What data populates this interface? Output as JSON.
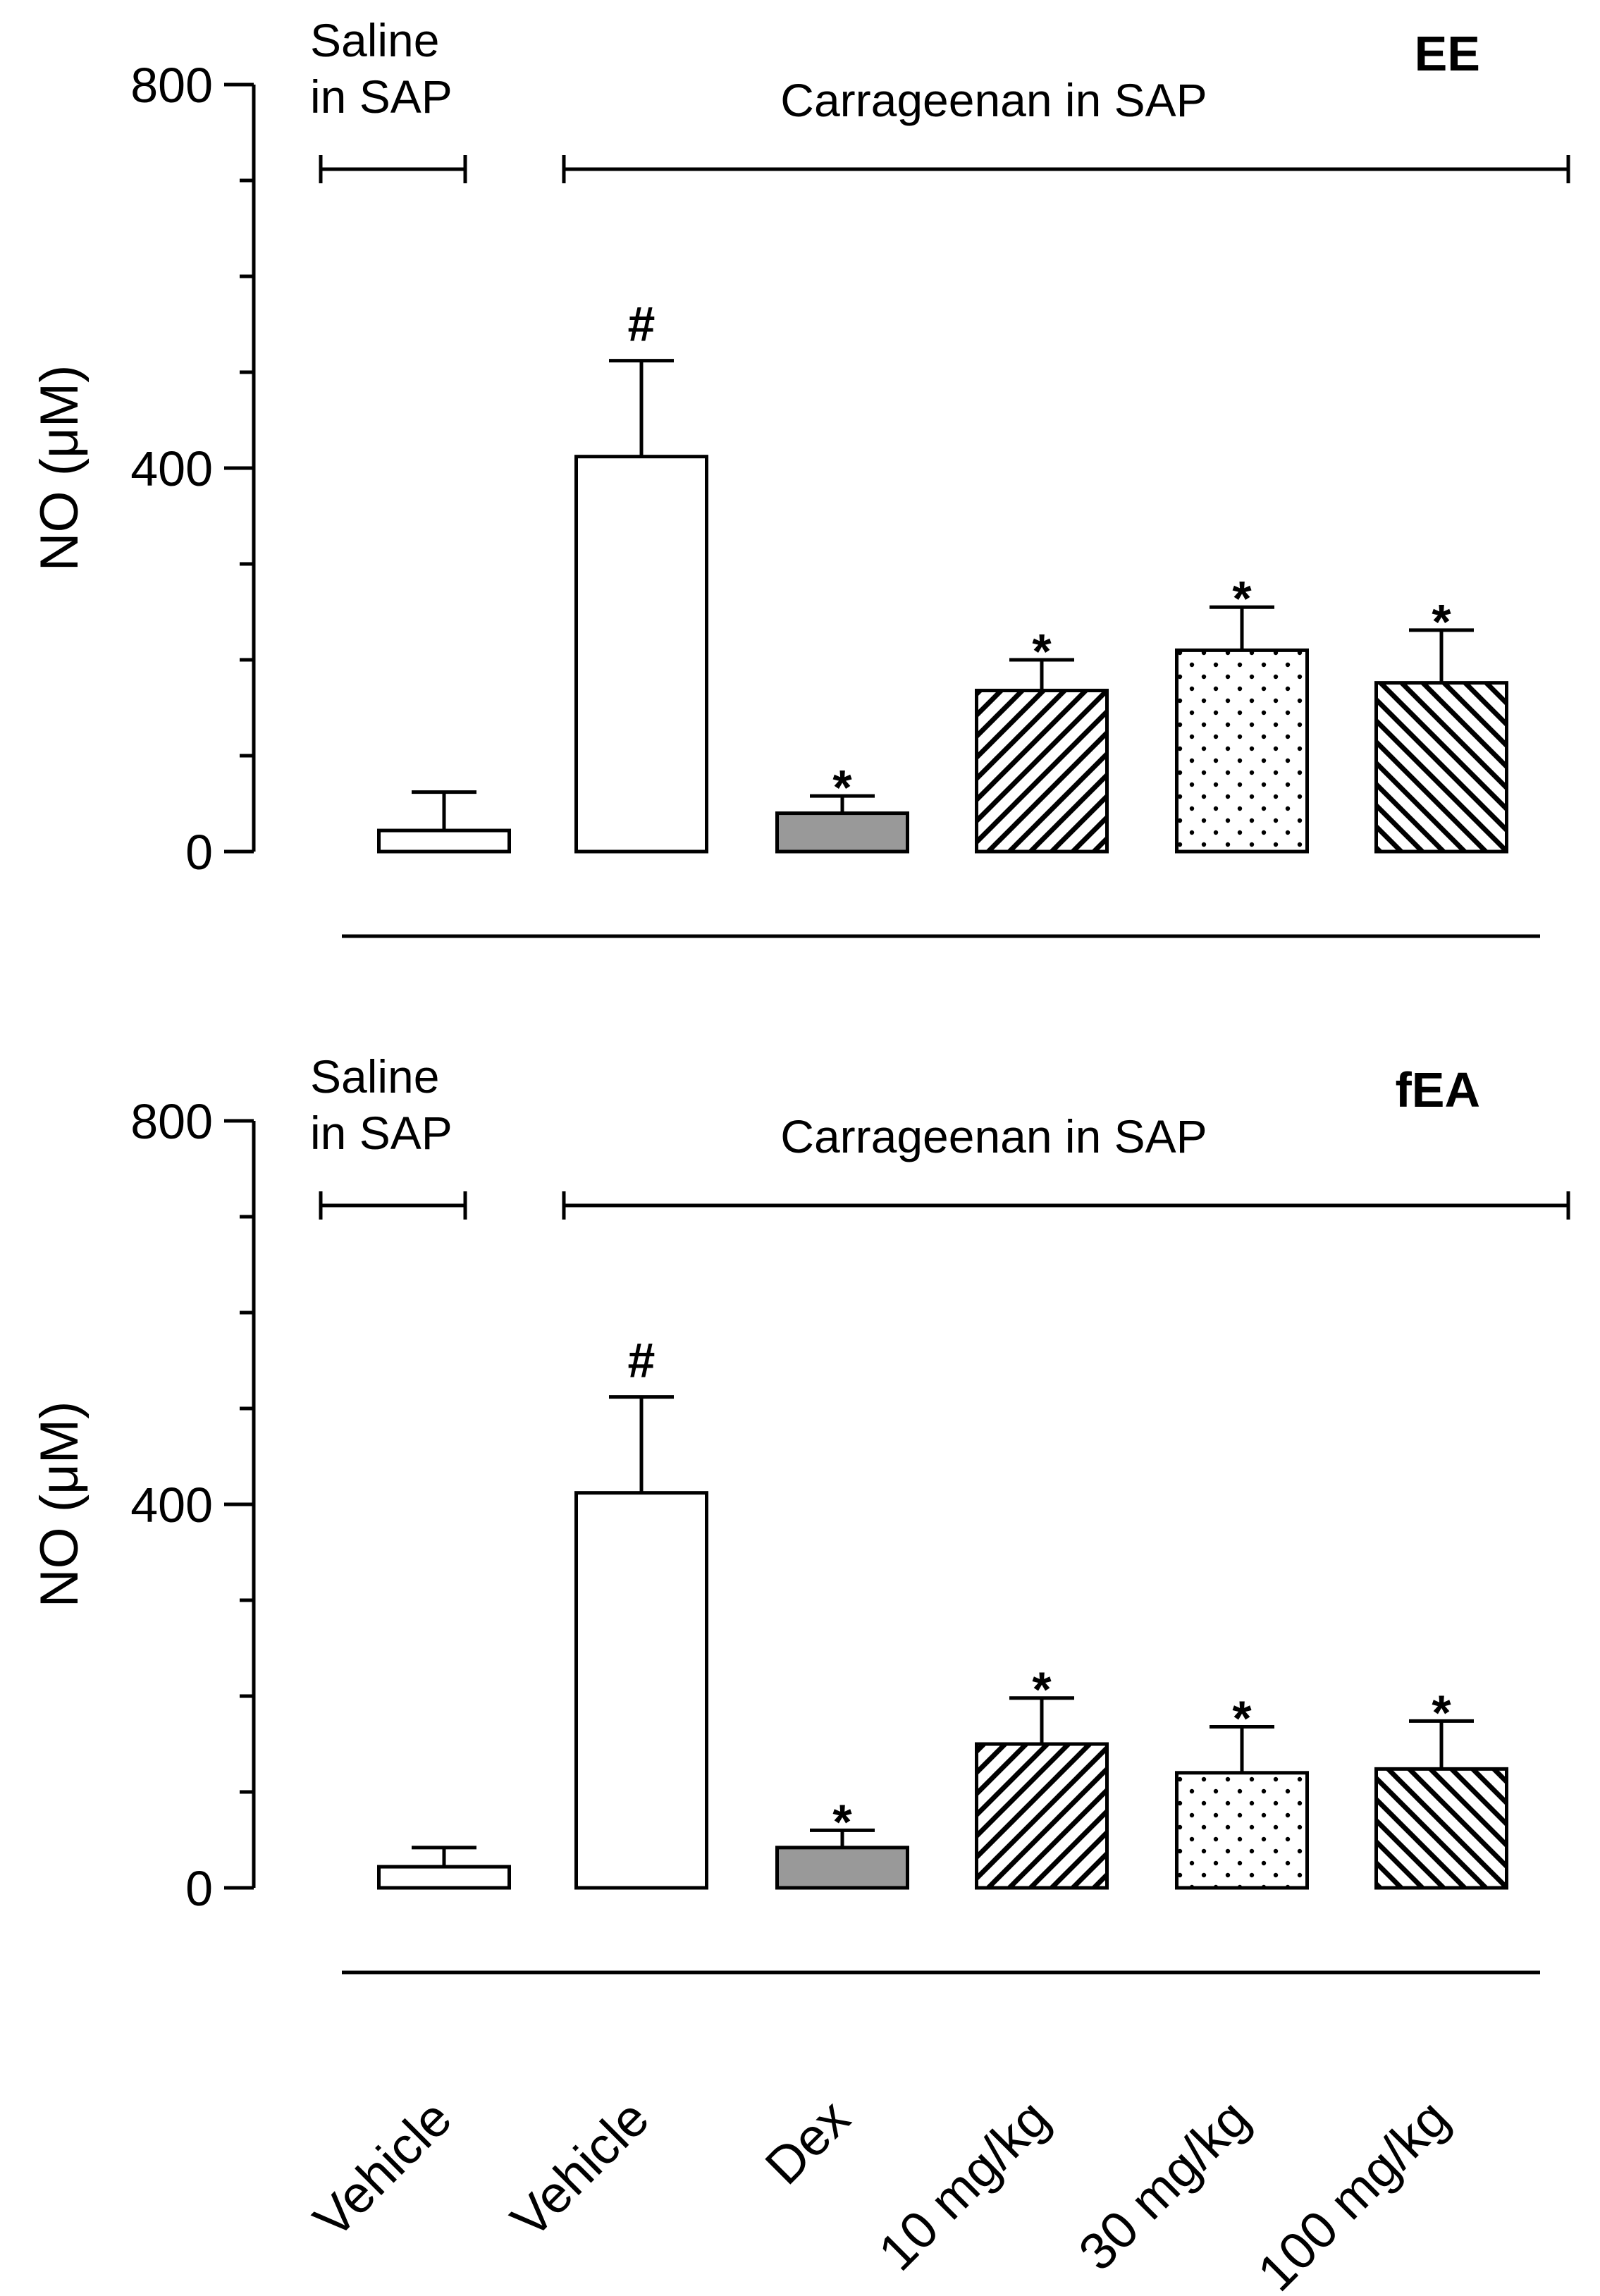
{
  "chart_data": [
    {
      "type": "bar",
      "title": "EE",
      "ylabel": "NO (μM)",
      "ylim": [
        0,
        800
      ],
      "yticks": [
        "0",
        "400",
        "800"
      ],
      "group_labels": {
        "saline": "Saline in SAP",
        "carrageenan": "Carrageenan in  SAP"
      },
      "categories": [
        "Vehicle",
        "Vehicle",
        "Dex",
        "10 mg/kg",
        "30 mg/kg",
        "100 mg/kg"
      ],
      "values": [
        22,
        412,
        40,
        168,
        210,
        176
      ],
      "errors": [
        40,
        100,
        18,
        32,
        45,
        55
      ],
      "significance": [
        "",
        "#",
        "*",
        "*",
        "*",
        "*"
      ],
      "fills": [
        "white",
        "white",
        "gray",
        "hatch-forward",
        "dots",
        "hatch-back"
      ]
    },
    {
      "type": "bar",
      "title": "fEA",
      "ylabel": "NO (μM)",
      "ylim": [
        0,
        800
      ],
      "yticks": [
        "0",
        "400",
        "800"
      ],
      "group_labels": {
        "saline": "Saline in SAP",
        "carrageenan": "Carrageenan in  SAP"
      },
      "categories": [
        "Vehicle",
        "Vehicle",
        "Dex",
        "10 mg/kg",
        "30 mg/kg",
        "100 mg/kg"
      ],
      "values": [
        22,
        412,
        42,
        150,
        120,
        124
      ],
      "errors": [
        20,
        100,
        18,
        48,
        48,
        50
      ],
      "significance": [
        "",
        "#",
        "*",
        "*",
        "*",
        "*"
      ],
      "fills": [
        "white",
        "white",
        "gray",
        "hatch-forward",
        "dots",
        "hatch-back"
      ]
    }
  ]
}
